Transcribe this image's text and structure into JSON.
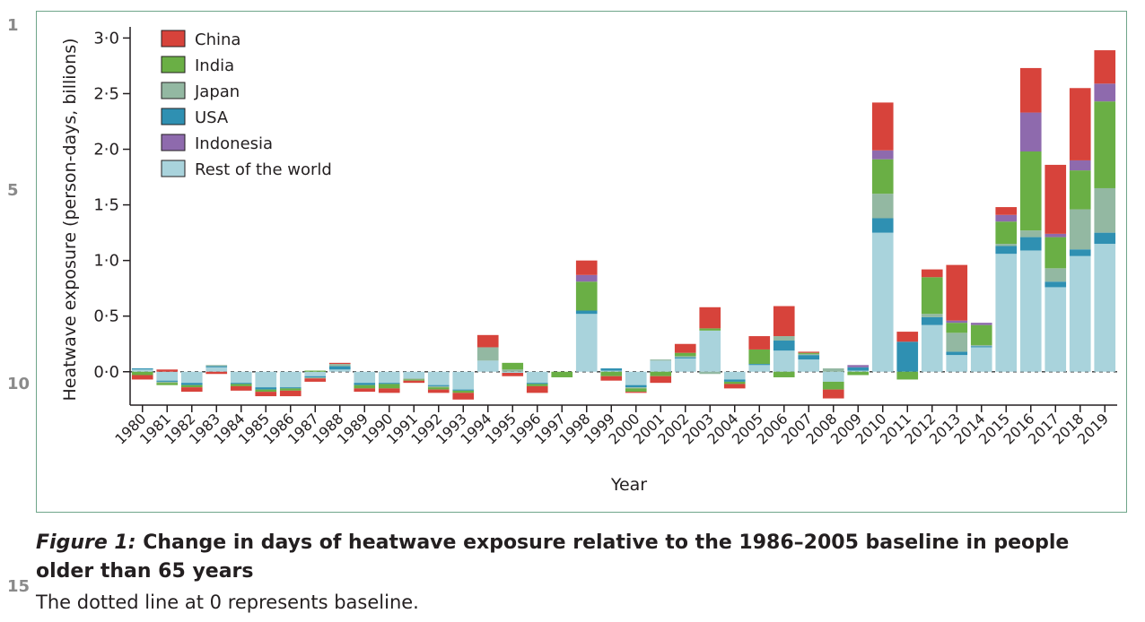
{
  "line_numbers": [
    "1",
    "5",
    "10",
    "15"
  ],
  "caption": {
    "label": "Figure 1:",
    "title": "Change in days of heatwave exposure relative to the 1986–2005 baseline in people older than 65 years",
    "body": "The dotted line at 0 represents baseline."
  },
  "colors": {
    "China": "#d7433b",
    "India": "#6aaf45",
    "Japan": "#93b8a2",
    "USA": "#2f90b2",
    "Indonesia": "#8e6aad",
    "Rest of the world": "#a9d3dc"
  },
  "chart_data": {
    "type": "bar",
    "stacked": true,
    "xlabel": "Year",
    "ylabel": "Heatwave exposure (person-days, billions)",
    "ylim": [
      -0.3,
      3.1
    ],
    "yticks": [
      "0·0",
      "0·5",
      "1·0",
      "1·5",
      "2·0",
      "2·5",
      "3·0"
    ],
    "ytick_values": [
      0,
      0.5,
      1.0,
      1.5,
      2.0,
      2.5,
      3.0
    ],
    "baseline": 0,
    "legend_position": "top-left",
    "categories": [
      "1980",
      "1981",
      "1982",
      "1983",
      "1984",
      "1985",
      "1986",
      "1987",
      "1988",
      "1989",
      "1990",
      "1991",
      "1992",
      "1993",
      "1994",
      "1995",
      "1996",
      "1997",
      "1998",
      "1999",
      "2000",
      "2001",
      "2002",
      "2003",
      "2004",
      "2005",
      "2006",
      "2007",
      "2008",
      "2009",
      "2010",
      "2011",
      "2012",
      "2013",
      "2014",
      "2015",
      "2016",
      "2017",
      "2018",
      "2019"
    ],
    "series": [
      {
        "name": "Rest of the world",
        "values": [
          0.02,
          -0.08,
          -0.1,
          0.04,
          -0.1,
          -0.14,
          -0.14,
          -0.04,
          0.02,
          -0.1,
          -0.1,
          -0.06,
          -0.12,
          -0.16,
          0.1,
          -0.01,
          -0.1,
          0.0,
          0.52,
          0.01,
          -0.12,
          0.1,
          0.12,
          0.37,
          -0.07,
          0.06,
          0.19,
          0.11,
          -0.09,
          0.01,
          1.25,
          0.0,
          0.42,
          0.15,
          0.22,
          1.06,
          1.09,
          0.76,
          1.04,
          1.15
        ]
      },
      {
        "name": "USA",
        "values": [
          0.01,
          -0.01,
          -0.02,
          0.01,
          -0.01,
          -0.02,
          -0.01,
          -0.01,
          0.03,
          -0.02,
          -0.01,
          0.0,
          -0.01,
          -0.01,
          0.0,
          0.0,
          -0.01,
          0.0,
          0.03,
          0.02,
          -0.02,
          0.0,
          0.01,
          0.0,
          -0.02,
          0.01,
          0.09,
          0.04,
          0.0,
          0.03,
          0.13,
          0.27,
          0.07,
          0.03,
          0.01,
          0.07,
          0.12,
          0.05,
          0.06,
          0.1
        ]
      },
      {
        "name": "Japan",
        "values": [
          0.0,
          -0.01,
          0.0,
          0.01,
          0.0,
          0.0,
          0.0,
          -0.01,
          0.02,
          0.0,
          0.0,
          -0.01,
          -0.01,
          0.0,
          0.12,
          0.02,
          0.0,
          0.0,
          0.0,
          0.0,
          -0.01,
          0.01,
          0.01,
          -0.02,
          0.0,
          0.0,
          0.04,
          0.01,
          0.03,
          0.0,
          0.22,
          0.0,
          0.03,
          0.17,
          0.01,
          0.02,
          0.06,
          0.12,
          0.36,
          0.4
        ]
      },
      {
        "name": "India",
        "values": [
          -0.03,
          -0.02,
          -0.02,
          0.0,
          -0.02,
          -0.02,
          -0.02,
          0.01,
          0.0,
          -0.03,
          -0.04,
          -0.01,
          -0.02,
          -0.02,
          0.0,
          0.06,
          -0.02,
          -0.05,
          0.26,
          -0.04,
          -0.03,
          -0.04,
          0.03,
          0.02,
          -0.02,
          0.13,
          -0.05,
          0.01,
          -0.07,
          -0.03,
          0.31,
          -0.07,
          0.33,
          0.09,
          0.18,
          0.2,
          0.71,
          0.28,
          0.35,
          0.78
        ]
      },
      {
        "name": "Indonesia",
        "values": [
          0.0,
          0.0,
          0.0,
          0.0,
          0.0,
          0.0,
          0.0,
          0.0,
          0.0,
          0.0,
          0.0,
          0.0,
          0.0,
          0.0,
          0.0,
          0.0,
          0.0,
          0.0,
          0.06,
          0.0,
          0.0,
          0.0,
          0.0,
          0.0,
          0.0,
          0.0,
          0.0,
          0.0,
          0.0,
          0.02,
          0.08,
          0.0,
          0.0,
          0.02,
          0.02,
          0.06,
          0.35,
          0.03,
          0.09,
          0.16
        ]
      },
      {
        "name": "China",
        "values": [
          -0.04,
          0.02,
          -0.04,
          -0.02,
          -0.04,
          -0.04,
          -0.05,
          -0.03,
          0.01,
          -0.03,
          -0.04,
          -0.02,
          -0.03,
          -0.06,
          0.11,
          -0.03,
          -0.06,
          0.0,
          0.13,
          -0.04,
          -0.01,
          -0.06,
          0.08,
          0.19,
          -0.04,
          0.12,
          0.27,
          0.01,
          -0.08,
          0.0,
          0.43,
          0.09,
          0.07,
          0.5,
          0.0,
          0.07,
          0.4,
          0.62,
          0.65,
          0.3
        ]
      }
    ],
    "legend_order": [
      "China",
      "India",
      "Japan",
      "USA",
      "Indonesia",
      "Rest of the world"
    ]
  }
}
